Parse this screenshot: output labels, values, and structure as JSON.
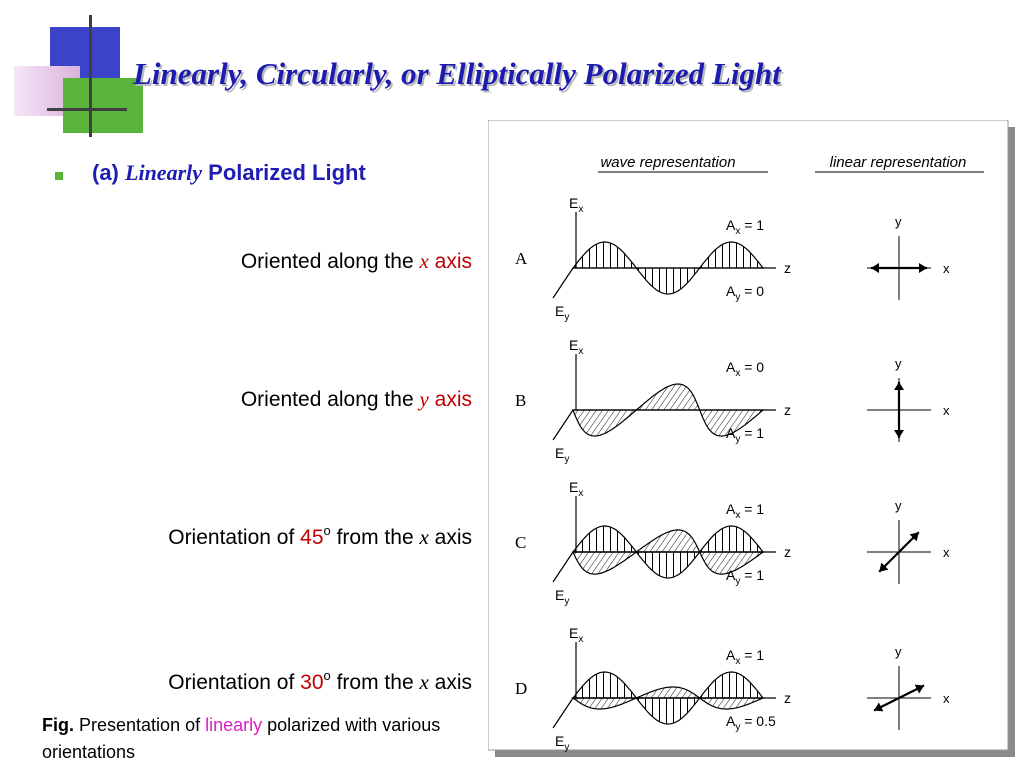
{
  "slide": {
    "title": "Linearly, Circularly, or Elliptically Polarized Light",
    "heading": {
      "prefix": "(a)",
      "italic": "Linearly",
      "suffix": "Polarized Light"
    },
    "captions": [
      {
        "before": "Oriented along the",
        "var": "x",
        "after": "axis"
      },
      {
        "before": "Oriented along the",
        "var": "y",
        "after": "axis"
      },
      {
        "before": "Orientation of",
        "angle": "45",
        "deg": "o",
        "mid": "from the",
        "var": "x",
        "after": "axis"
      },
      {
        "before": "Orientation of",
        "angle": "30",
        "deg": "o",
        "mid": "from the",
        "var": "x",
        "after": "axis"
      }
    ],
    "fig_caption": {
      "label": "Fig.",
      "pre": "Presentation of",
      "highlight": "linearly",
      "post": "polarized with various orientations"
    },
    "colors": {
      "title": "#1c1cae",
      "heading": "#1d1db3",
      "accent_red": "#c00000",
      "highlight": "#e020c0",
      "bullet": "#5ab43c"
    }
  },
  "figure": {
    "col_wave": "wave representation",
    "col_linear": "linear representation",
    "ex": "E",
    "ex_sub": "x",
    "ey": "E",
    "ey_sub": "y",
    "z": "z",
    "x": "x",
    "y": "y",
    "rows": [
      {
        "label": "A",
        "ax_label": "A",
        "ax_sub": "x",
        "ax_val": "= 1",
        "ay_label": "A",
        "ay_sub": "y",
        "ay_val": "= 0",
        "ax": 1,
        "ay": 0
      },
      {
        "label": "B",
        "ax_label": "A",
        "ax_sub": "x",
        "ax_val": "= 0",
        "ay_label": "A",
        "ay_sub": "y",
        "ay_val": "= 1",
        "ax": 0,
        "ay": 1
      },
      {
        "label": "C",
        "ax_label": "A",
        "ax_sub": "x",
        "ax_val": "= 1",
        "ay_label": "A",
        "ay_sub": "y",
        "ay_val": "= 1",
        "ax": 1,
        "ay": 1
      },
      {
        "label": "D",
        "ax_label": "A",
        "ax_sub": "x",
        "ax_val": "= 1",
        "ay_label": "A",
        "ay_sub": "y",
        "ay_val": "= 0.5",
        "ax": 1,
        "ay": 0.5
      }
    ]
  }
}
